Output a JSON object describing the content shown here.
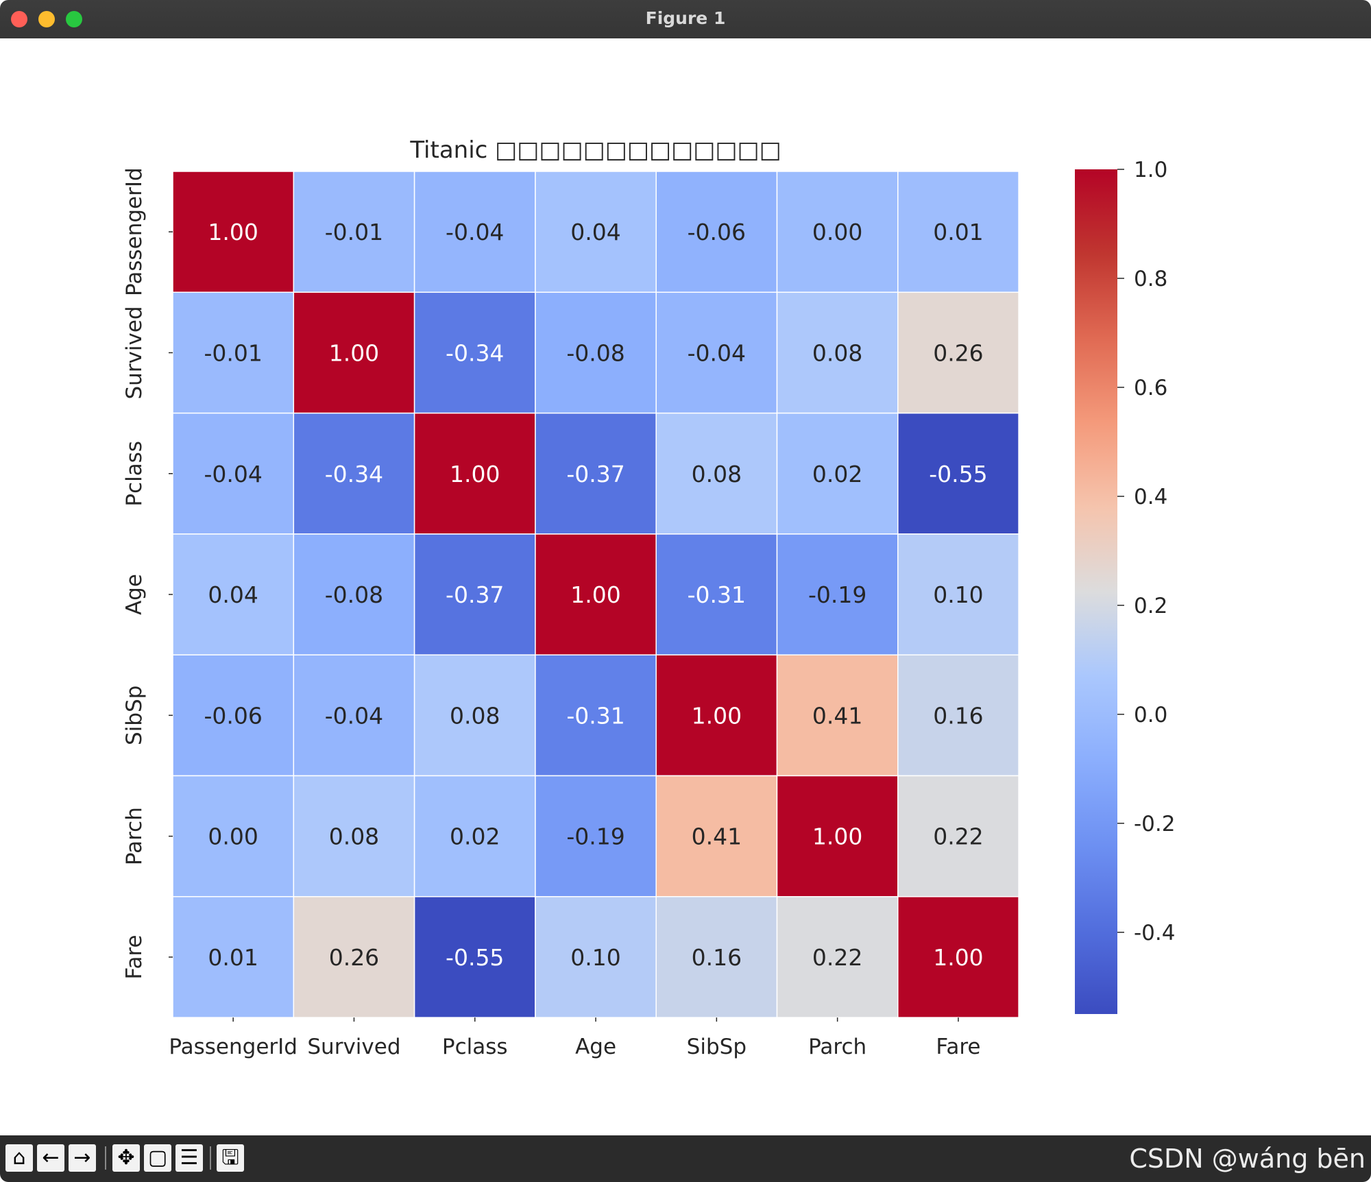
{
  "window": {
    "title": "Figure 1"
  },
  "toolbar": {
    "buttons": [
      {
        "name": "home-icon",
        "glyph": "⌂"
      },
      {
        "name": "back-icon",
        "glyph": "←"
      },
      {
        "name": "forward-icon",
        "glyph": "→"
      },
      {
        "name": "pan-icon",
        "glyph": "✥"
      },
      {
        "name": "zoom-icon",
        "glyph": "▢"
      },
      {
        "name": "configure-icon",
        "glyph": "☰"
      },
      {
        "name": "save-icon",
        "glyph": "🖫"
      }
    ],
    "watermark": "CSDN @wáng bēn"
  },
  "chart_data": {
    "type": "heatmap",
    "title": "Titanic □□□□□□□□□□□□□",
    "categories": [
      "PassengerId",
      "Survived",
      "Pclass",
      "Age",
      "SibSp",
      "Parch",
      "Fare"
    ],
    "values": [
      [
        1.0,
        -0.01,
        -0.04,
        0.04,
        -0.06,
        -0.0,
        0.01
      ],
      [
        -0.01,
        1.0,
        -0.34,
        -0.08,
        -0.04,
        0.08,
        0.26
      ],
      [
        -0.04,
        -0.34,
        1.0,
        -0.37,
        0.08,
        0.02,
        -0.55
      ],
      [
        0.04,
        -0.08,
        -0.37,
        1.0,
        -0.31,
        -0.19,
        0.1
      ],
      [
        -0.06,
        -0.04,
        0.08,
        -0.31,
        1.0,
        0.41,
        0.16
      ],
      [
        -0.0,
        0.08,
        0.02,
        -0.19,
        0.41,
        1.0,
        0.22
      ],
      [
        0.01,
        0.26,
        -0.55,
        0.1,
        0.16,
        0.22,
        1.0
      ]
    ],
    "vmin": -0.55,
    "vmax": 1.0,
    "colormap": "coolwarm",
    "colorbar_ticks": [
      1.0,
      0.8,
      0.6,
      0.4,
      0.2,
      0.0,
      -0.2,
      -0.4
    ],
    "colorbar_tick_labels": [
      "1.0",
      "0.8",
      "0.6",
      "0.4",
      "0.2",
      "0.0",
      "-0.2",
      "-0.4"
    ],
    "annotation_format": "2 decimals",
    "grid": true
  }
}
